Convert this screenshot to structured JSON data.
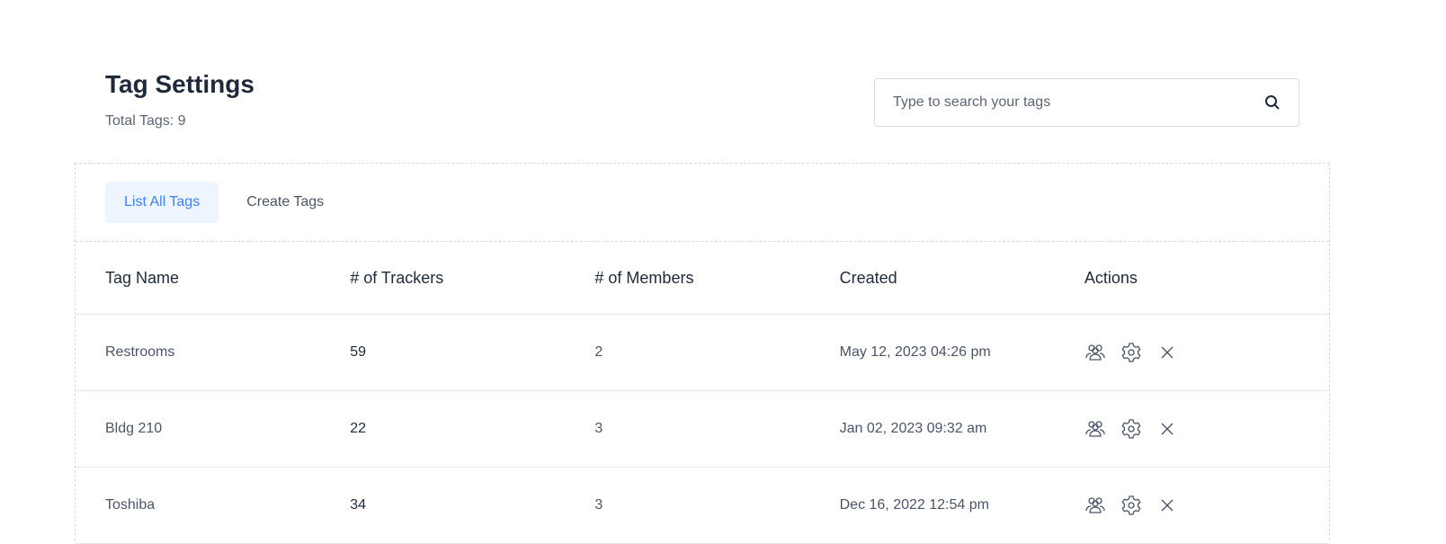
{
  "header": {
    "title": "Tag Settings",
    "total_label": "Total Tags: 9"
  },
  "search": {
    "placeholder": "Type to search your tags",
    "value": ""
  },
  "tabs": [
    {
      "label": "List All Tags",
      "active": true
    },
    {
      "label": "Create Tags",
      "active": false
    }
  ],
  "table": {
    "columns": [
      "Tag Name",
      "# of Trackers",
      "# of Members",
      "Created",
      "Actions"
    ],
    "rows": [
      {
        "name": "Restrooms",
        "trackers": "59",
        "members": "2",
        "created": "May 12, 2023 04:26 pm"
      },
      {
        "name": "Bldg 210",
        "trackers": "22",
        "members": "3",
        "created": "Jan 02, 2023 09:32 am"
      },
      {
        "name": "Toshiba",
        "trackers": "34",
        "members": "3",
        "created": "Dec 16, 2022 12:54 pm"
      }
    ],
    "action_icons": [
      "users-icon",
      "gear-icon",
      "close-icon"
    ]
  }
}
